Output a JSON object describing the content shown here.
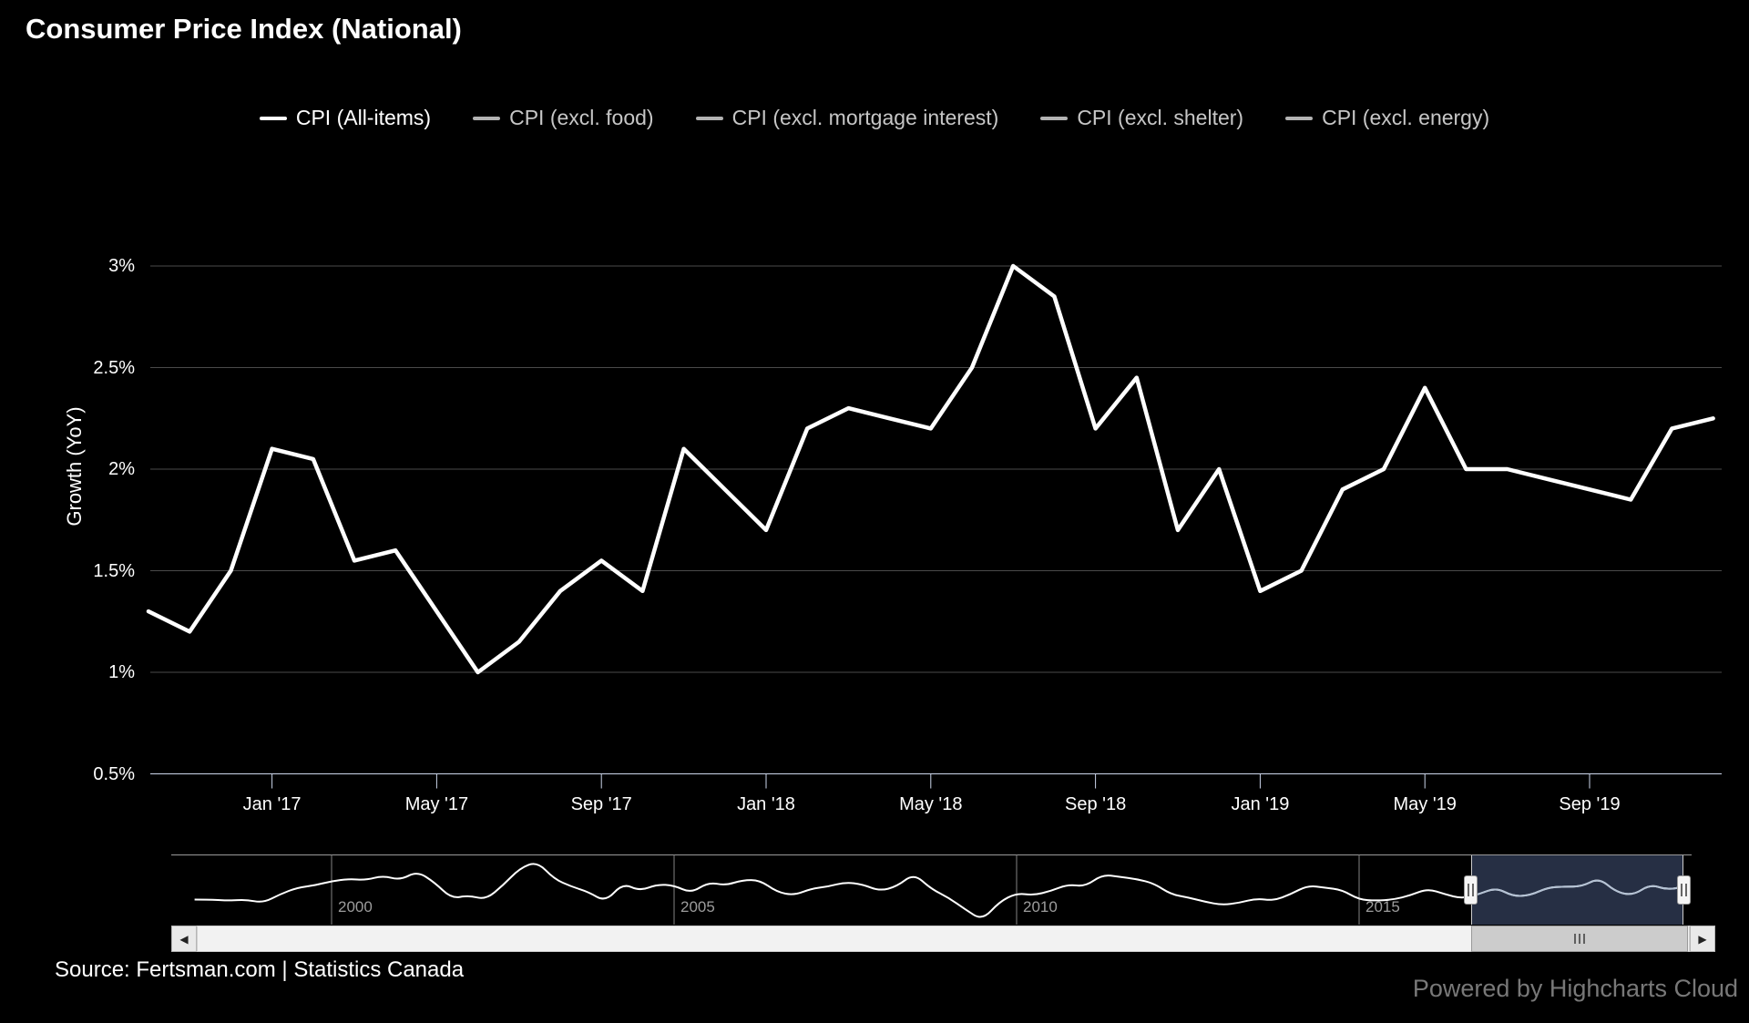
{
  "title": "Consumer Price Index (National)",
  "legend": {
    "items": [
      {
        "label": "CPI (All-items)",
        "active": true
      },
      {
        "label": "CPI (excl. food)",
        "active": false
      },
      {
        "label": "CPI (excl. mortgage interest)",
        "active": false
      },
      {
        "label": "CPI (excl. shelter)",
        "active": false
      },
      {
        "label": "CPI (excl. energy)",
        "active": false
      }
    ]
  },
  "y_axis": {
    "title": "Growth (YoY)",
    "ticks": [
      {
        "label": "3%",
        "value": 3
      },
      {
        "label": "2.5%",
        "value": 2.5
      },
      {
        "label": "2%",
        "value": 2
      },
      {
        "label": "1.5%",
        "value": 1.5
      },
      {
        "label": "1%",
        "value": 1
      },
      {
        "label": "0.5%",
        "value": 0.5
      }
    ]
  },
  "x_axis": {
    "ticks": [
      {
        "label": "Jan '17",
        "index": 3
      },
      {
        "label": "May '17",
        "index": 7
      },
      {
        "label": "Sep '17",
        "index": 11
      },
      {
        "label": "Jan '18",
        "index": 15
      },
      {
        "label": "May '18",
        "index": 19
      },
      {
        "label": "Sep '18",
        "index": 23
      },
      {
        "label": "Jan '19",
        "index": 27
      },
      {
        "label": "May '19",
        "index": 31
      },
      {
        "label": "Sep '19",
        "index": 35
      }
    ]
  },
  "navigator": {
    "year_labels": [
      {
        "label": "2000",
        "year": 2000
      },
      {
        "label": "2005",
        "year": 2005
      },
      {
        "label": "2010",
        "year": 2010
      },
      {
        "label": "2015",
        "year": 2015
      }
    ]
  },
  "scrollbar": {
    "left_arrow": "◀",
    "right_arrow": "▶"
  },
  "source": "Source: Fertsman.com | Statistics Canada",
  "credits": "Powered by Highcharts Cloud",
  "colors": {
    "background": "#000000",
    "series_line": "#ffffff",
    "grid": "#4a4a4a",
    "axis": "#ccd6eb",
    "navigator_window": "#262f44",
    "navigator_line_selected": "#b4c2d4",
    "inactive_legend": "#c6c6c6"
  },
  "chart_data": {
    "type": "line",
    "title": "Consumer Price Index (National)",
    "ylabel": "Growth (YoY)",
    "ylim": [
      0.5,
      3
    ],
    "x": [
      "2016-10",
      "2016-11",
      "2016-12",
      "2017-01",
      "2017-02",
      "2017-03",
      "2017-04",
      "2017-05",
      "2017-06",
      "2017-07",
      "2017-08",
      "2017-09",
      "2017-10",
      "2017-11",
      "2017-12",
      "2018-01",
      "2018-02",
      "2018-03",
      "2018-04",
      "2018-05",
      "2018-06",
      "2018-07",
      "2018-08",
      "2018-09",
      "2018-10",
      "2018-11",
      "2018-12",
      "2019-01",
      "2019-02",
      "2019-03",
      "2019-04",
      "2019-05",
      "2019-06",
      "2019-07",
      "2019-08",
      "2019-09",
      "2019-10",
      "2019-11",
      "2019-12"
    ],
    "series": [
      {
        "name": "CPI (All-items)",
        "visible": true,
        "values": [
          1.3,
          1.2,
          1.5,
          2.1,
          2.05,
          1.55,
          1.6,
          1.3,
          1.0,
          1.15,
          1.4,
          1.55,
          1.4,
          2.1,
          1.9,
          1.7,
          2.2,
          2.3,
          2.25,
          2.2,
          2.5,
          3.0,
          2.85,
          2.2,
          2.45,
          1.7,
          2.0,
          1.4,
          1.5,
          1.9,
          2.0,
          2.4,
          2.0,
          2.0,
          1.95,
          1.9,
          1.85,
          2.2,
          2.25
        ]
      },
      {
        "name": "CPI (excl. food)",
        "visible": false,
        "values": []
      },
      {
        "name": "CPI (excl. mortgage interest)",
        "visible": false,
        "values": []
      },
      {
        "name": "CPI (excl. shelter)",
        "visible": false,
        "values": []
      },
      {
        "name": "CPI (excl. energy)",
        "visible": false,
        "values": []
      }
    ],
    "navigator_series": {
      "x_start_year": 1998,
      "x_step_years": 0.25,
      "values": [
        1.0,
        1.0,
        0.9,
        1.0,
        0.7,
        1.5,
        2.1,
        2.3,
        2.7,
        2.9,
        2.8,
        3.2,
        2.8,
        3.6,
        2.6,
        1.1,
        1.4,
        1.0,
        2.3,
        3.9,
        4.5,
        2.9,
        2.2,
        1.7,
        0.8,
        2.5,
        1.8,
        2.4,
        2.3,
        1.6,
        2.6,
        2.3,
        2.8,
        2.8,
        1.7,
        1.4,
        2.0,
        2.2,
        2.6,
        2.4,
        1.8,
        2.2,
        3.4,
        2.0,
        1.2,
        0.1,
        -0.9,
        0.8,
        1.6,
        1.4,
        1.8,
        2.4,
        2.2,
        3.3,
        3.1,
        2.9,
        2.5,
        1.5,
        1.2,
        0.8,
        0.5,
        0.7,
        1.1,
        0.9,
        1.5,
        2.3,
        2.1,
        1.9,
        1.0,
        0.9,
        1.0,
        1.4,
        2.0,
        1.5,
        1.1,
        1.5,
        2.1,
        1.3,
        1.4,
        2.1,
        2.2,
        2.2,
        3.0,
        1.7,
        1.4,
        2.4,
        1.9,
        2.2
      ]
    }
  }
}
